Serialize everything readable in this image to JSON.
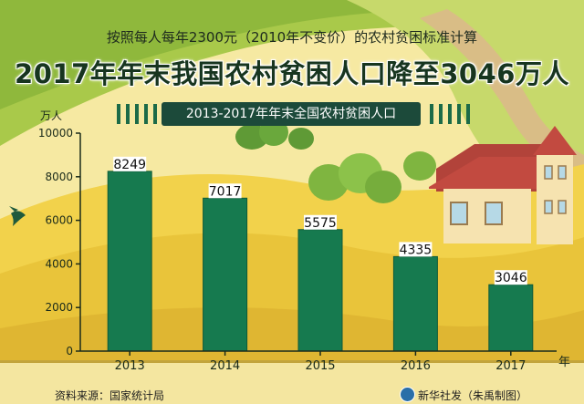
{
  "header": {
    "subtitle": "按照每人每年2300元（2010年不变价）的农村贫困标准计算",
    "title": "2017年年末我国农村贫困人口降至3046万人"
  },
  "footer": {
    "source": "资料来源：国家统计局",
    "credit": "新华社发（朱禹制图）"
  },
  "colors": {
    "bar": "#167a4f",
    "bar_edge": "#0f5a39",
    "panel": "#1c4a3a",
    "axis": "#1a2a1a"
  },
  "icons": [
    "bird-icon",
    "house-illustration",
    "tree-illustration",
    "xinhua-logo-icon"
  ],
  "chart_data": {
    "type": "bar",
    "title": "2013-2017年年末全国农村贫困人口",
    "ylabel": "万人",
    "xlabel": "年",
    "categories": [
      "2013",
      "2014",
      "2015",
      "2016",
      "2017"
    ],
    "values": [
      8249,
      7017,
      5575,
      4335,
      3046
    ],
    "data_labels": [
      "8249",
      "7017",
      "5575",
      "4335",
      "3046"
    ],
    "ylim": [
      0,
      10000
    ],
    "yticks": [
      0,
      2000,
      4000,
      6000,
      8000,
      10000
    ],
    "ytick_labels": [
      "0",
      "2000",
      "4000",
      "6000",
      "8000",
      "10000"
    ],
    "grid": false,
    "legend": "none"
  }
}
